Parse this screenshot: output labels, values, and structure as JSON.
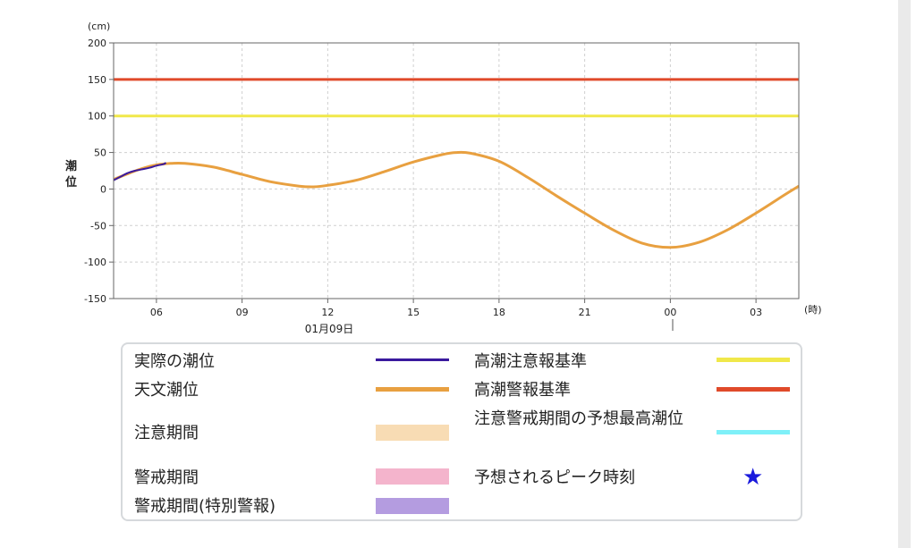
{
  "chart_data": {
    "type": "line",
    "ylabel": "潮位",
    "y_unit": "(cm)",
    "x_unit": "(時)",
    "ylim": [
      -150,
      200
    ],
    "yticks": [
      200,
      150,
      100,
      50,
      0,
      -50,
      -100,
      -150
    ],
    "y_tick_labels": [
      "200",
      "150",
      "100",
      "50",
      "0",
      "-50",
      "-100",
      "-150"
    ],
    "xlim": [
      "2024-01-09T04:30",
      "2024-01-10T04:30"
    ],
    "xticks": [
      "2024-01-09T06:00",
      "2024-01-09T09:00",
      "2024-01-09T12:00",
      "2024-01-09T15:00",
      "2024-01-09T18:00",
      "2024-01-09T21:00",
      "2024-01-10T00:00",
      "2024-01-10T03:00"
    ],
    "x_tick_labels": [
      "06",
      "09",
      "12",
      "15",
      "18",
      "21",
      "00",
      "03"
    ],
    "date_label": "01月09日",
    "grid": true,
    "series": [
      {
        "name": "天文潮位",
        "color": "#e8a040",
        "x": [
          "2024-01-09T04:30",
          "2024-01-09T05:00",
          "2024-01-09T05:30",
          "2024-01-09T06:00",
          "2024-01-09T06:30",
          "2024-01-09T07:00",
          "2024-01-09T08:00",
          "2024-01-09T09:00",
          "2024-01-09T10:00",
          "2024-01-09T11:00",
          "2024-01-09T11:30",
          "2024-01-09T12:00",
          "2024-01-09T13:00",
          "2024-01-09T14:00",
          "2024-01-09T15:00",
          "2024-01-09T16:00",
          "2024-01-09T16:30",
          "2024-01-09T17:00",
          "2024-01-09T18:00",
          "2024-01-09T19:00",
          "2024-01-09T20:00",
          "2024-01-09T21:00",
          "2024-01-09T22:00",
          "2024-01-09T23:00",
          "2024-01-10T00:00",
          "2024-01-10T01:00",
          "2024-01-10T02:00",
          "2024-01-10T03:00",
          "2024-01-10T04:00",
          "2024-01-10T04:30"
        ],
        "values": [
          13,
          21,
          28,
          33,
          35,
          35,
          30,
          20,
          10,
          4,
          3,
          5,
          12,
          24,
          37,
          47,
          50,
          49,
          38,
          16,
          -9,
          -33,
          -56,
          -74,
          -80,
          -73,
          -56,
          -33,
          -8,
          4
        ]
      },
      {
        "name": "実際の潮位",
        "color": "#3a1a9e",
        "x": [
          "2024-01-09T04:30",
          "2024-01-09T04:45",
          "2024-01-09T05:00",
          "2024-01-09T05:15",
          "2024-01-09T05:30",
          "2024-01-09T05:45",
          "2024-01-09T06:00",
          "2024-01-09T06:15",
          "2024-01-09T06:20"
        ],
        "values": [
          12,
          17,
          22,
          25,
          27,
          29,
          32,
          34,
          36
        ]
      }
    ],
    "reference_lines": [
      {
        "name": "高潮警報基準",
        "value": 150,
        "color": "#e04a2a"
      },
      {
        "name": "高潮注意報基準",
        "value": 100,
        "color": "#f0e84a"
      }
    ]
  },
  "legend": {
    "items": [
      {
        "label": "実際の潮位",
        "type": "line",
        "color": "#3a1a9e"
      },
      {
        "label": "天文潮位",
        "type": "line",
        "color": "#e8a040"
      },
      {
        "label": "注意期間",
        "type": "box",
        "color": "#f8dcb4"
      },
      {
        "label": "警戒期間",
        "type": "box",
        "color": "#f4b4cc"
      },
      {
        "label": "警戒期間(特別警報)",
        "type": "box",
        "color": "#b49ce0"
      },
      {
        "label": "高潮注意報基準",
        "type": "line",
        "color": "#f0e84a"
      },
      {
        "label": "高潮警報基準",
        "type": "line",
        "color": "#e04a2a"
      },
      {
        "label": "注意警戒期間の予想最高潮位",
        "type": "line",
        "color": "#7ef0f8"
      },
      {
        "label": "予想されるピーク時刻",
        "type": "star",
        "color": "#1a1adc",
        "symbol": "★"
      }
    ]
  }
}
